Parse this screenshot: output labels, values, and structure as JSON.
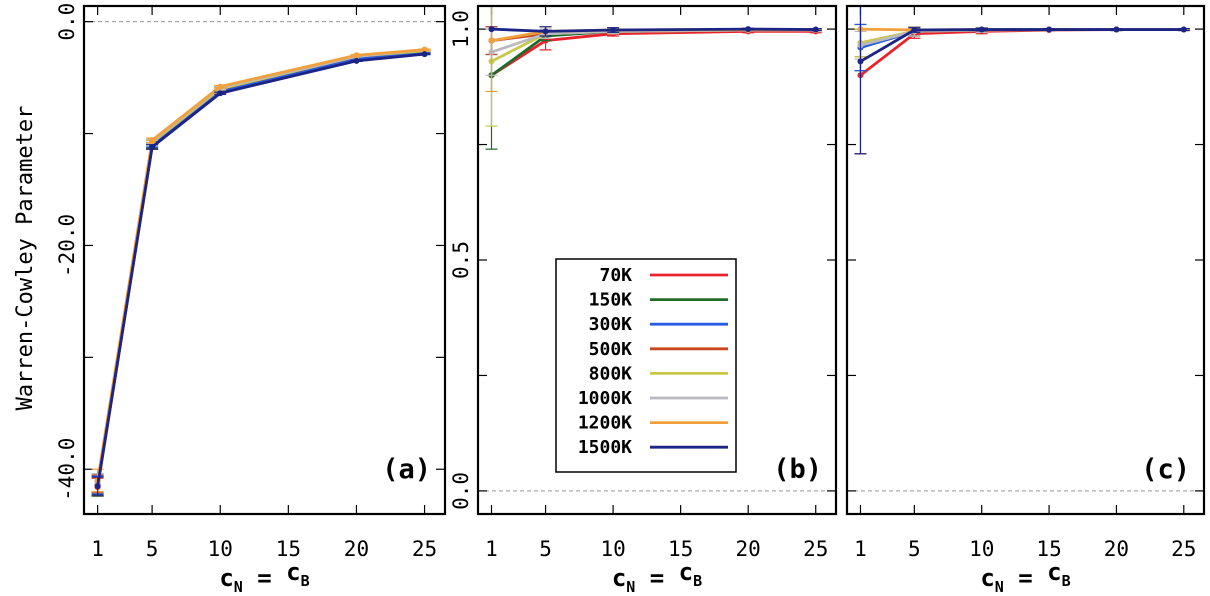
{
  "ylabel": "Warren-Cowley Parameter",
  "legend": {
    "entries": [
      "70K",
      "150K",
      "300K",
      "500K",
      "800K",
      "1000K",
      "1200K",
      "1500K"
    ]
  },
  "colors": {
    "70K": "#e8232b",
    "150K": "#1e6b2a",
    "300K": "#2a5be3",
    "500K": "#c9461f",
    "800K": "#c9c84a",
    "1000K": "#b9b9c0",
    "1200K": "#f2a03c",
    "1500K": "#1a2585"
  },
  "chart_data": [
    {
      "type": "line",
      "panel_label": "(a)",
      "xlabel": "c",
      "xlabel_sub1": "N",
      "xlabel_eq": "=",
      "xlabel_b": "c",
      "xlabel_sub2": "B",
      "x": [
        1,
        5,
        10,
        20,
        25
      ],
      "xticks": [
        "1",
        "5",
        "10",
        "15",
        "20",
        "25"
      ],
      "xtick_values": [
        1,
        5,
        10,
        15,
        20,
        25
      ],
      "xlim": [
        0,
        26.5
      ],
      "ylim": [
        -44,
        1.4
      ],
      "yticks": [
        "0.0",
        "-20.0",
        "-40.0"
      ],
      "ytick_values": [
        0,
        -20,
        -40
      ],
      "yminor": [
        -10,
        -30
      ],
      "zero_line": 0,
      "series": [
        {
          "name": "70K",
          "values": [
            -41.6,
            -11.2,
            -6.3,
            -3.4,
            -2.8
          ],
          "err": [
            0.8,
            0.2,
            0.1,
            0.05,
            0.05
          ]
        },
        {
          "name": "150K",
          "values": [
            -41.5,
            -11.1,
            -6.2,
            -3.3,
            -2.8
          ],
          "err": [
            0.9,
            0.2,
            0.1,
            0.05,
            0.05
          ]
        },
        {
          "name": "300K",
          "values": [
            -41.4,
            -11.0,
            -6.2,
            -3.3,
            -2.7
          ],
          "err": [
            0.8,
            0.2,
            0.1,
            0.05,
            0.05
          ]
        },
        {
          "name": "500K",
          "values": [
            -41.3,
            -10.8,
            -6.0,
            -3.1,
            -2.6
          ],
          "err": [
            0.8,
            0.2,
            0.1,
            0.05,
            0.05
          ]
        },
        {
          "name": "800K",
          "values": [
            -41.2,
            -10.8,
            -6.0,
            -3.1,
            -2.6
          ],
          "err": [
            0.8,
            0.2,
            0.1,
            0.05,
            0.05
          ]
        },
        {
          "name": "1000K",
          "values": [
            -41.2,
            -10.7,
            -5.9,
            -3.1,
            -2.5
          ],
          "err": [
            0.8,
            0.2,
            0.1,
            0.05,
            0.05
          ]
        },
        {
          "name": "1200K",
          "values": [
            -41.0,
            -10.6,
            -5.8,
            -3.0,
            -2.5
          ],
          "err": [
            1.0,
            0.2,
            0.1,
            0.05,
            0.05
          ]
        },
        {
          "name": "1500K",
          "values": [
            -41.5,
            -11.2,
            -6.4,
            -3.5,
            -2.9
          ],
          "err": [
            0.8,
            0.2,
            0.1,
            0.05,
            0.05
          ]
        }
      ]
    },
    {
      "type": "line",
      "panel_label": "(b)",
      "xlabel": "c",
      "xlabel_sub1": "N",
      "xlabel_eq": "=",
      "xlabel_b": "c",
      "xlabel_sub2": "B",
      "x": [
        1,
        5,
        10,
        20,
        25
      ],
      "xticks": [
        "1",
        "5",
        "10",
        "15",
        "20",
        "25"
      ],
      "xtick_values": [
        1,
        5,
        10,
        15,
        20,
        25
      ],
      "xlim": [
        0,
        26.5
      ],
      "ylim": [
        -0.05,
        1.05
      ],
      "yticks": [
        "1.0",
        "0.5",
        "0.0"
      ],
      "ytick_values": [
        1.0,
        0.5,
        0.0
      ],
      "yminor": [
        0.75,
        0.25
      ],
      "zero_line": 0,
      "legend_position": "center",
      "series": [
        {
          "name": "70K",
          "values": [
            0.9,
            0.975,
            0.99,
            0.995,
            0.995
          ],
          "err": [
            0.0,
            0.02,
            0.005,
            0.003,
            0.003
          ]
        },
        {
          "name": "150K",
          "values": [
            0.9,
            0.985,
            0.995,
            0.998,
            0.998
          ],
          "err": [
            0.16,
            0.01,
            0.005,
            0.002,
            0.002
          ]
        },
        {
          "name": "300K",
          "values": [
            0.975,
            0.99,
            0.995,
            0.998,
            0.998
          ],
          "err": [
            0.03,
            0.01,
            0.005,
            0.002,
            0.002
          ]
        },
        {
          "name": "500K",
          "values": [
            0.975,
            0.99,
            0.995,
            0.998,
            0.998
          ],
          "err": [
            0.03,
            0.01,
            0.005,
            0.002,
            0.002
          ]
        },
        {
          "name": "800K",
          "values": [
            0.93,
            0.99,
            0.995,
            0.998,
            0.998
          ],
          "err": [
            0.14,
            0.01,
            0.005,
            0.002,
            0.002
          ]
        },
        {
          "name": "1000K",
          "values": [
            0.95,
            0.99,
            0.995,
            0.998,
            0.998
          ],
          "err": [
            0.05,
            0.01,
            0.005,
            0.002,
            0.002
          ]
        },
        {
          "name": "1200K",
          "values": [
            0.975,
            0.995,
            0.998,
            0.999,
            0.999
          ],
          "err": [
            0.11,
            0.01,
            0.005,
            0.002,
            0.002
          ]
        },
        {
          "name": "1500K",
          "values": [
            1.0,
            0.995,
            0.998,
            1.0,
            0.999
          ],
          "err": [
            0.0,
            0.01,
            0.005,
            0.002,
            0.002
          ]
        }
      ]
    },
    {
      "type": "line",
      "panel_label": "(c)",
      "xlabel": "c",
      "xlabel_sub1": "N",
      "xlabel_eq": "=",
      "xlabel_b": "c",
      "xlabel_sub2": "B",
      "x": [
        1,
        5,
        10,
        15,
        20,
        25
      ],
      "xticks": [
        "1",
        "5",
        "10",
        "15",
        "20",
        "25"
      ],
      "xtick_values": [
        1,
        5,
        10,
        15,
        20,
        25
      ],
      "xlim": [
        0,
        26.5
      ],
      "ylim": [
        -0.05,
        1.05
      ],
      "yticks": [],
      "ytick_values": [
        1.0,
        0.5,
        0.0
      ],
      "yminor": [
        0.75,
        0.25
      ],
      "zero_line": 0,
      "series": [
        {
          "name": "70K",
          "values": [
            0.9,
            0.99,
            0.995,
            0.998,
            0.999,
            0.999
          ],
          "err": [
            0.17,
            0.01,
            0.005,
            0.002,
            0.002,
            0.002
          ]
        },
        {
          "name": "150K",
          "values": [
            0.96,
            0.995,
            0.998,
            0.999,
            0.999,
            0.999
          ],
          "err": [
            0.05,
            0.01,
            0.005,
            0.002,
            0.002,
            0.002
          ]
        },
        {
          "name": "300K",
          "values": [
            0.96,
            0.995,
            0.998,
            0.999,
            0.999,
            0.999
          ],
          "err": [
            0.05,
            0.01,
            0.005,
            0.002,
            0.002,
            0.002
          ]
        },
        {
          "name": "500K",
          "values": [
            0.97,
            0.995,
            0.998,
            0.999,
            0.999,
            0.999
          ],
          "err": [
            0.03,
            0.01,
            0.005,
            0.002,
            0.002,
            0.002
          ]
        },
        {
          "name": "800K",
          "values": [
            0.97,
            0.995,
            0.998,
            0.999,
            0.999,
            0.999
          ],
          "err": [
            0.03,
            0.01,
            0.005,
            0.002,
            0.002,
            0.002
          ]
        },
        {
          "name": "1000K",
          "values": [
            0.965,
            0.995,
            0.998,
            0.999,
            0.999,
            0.999
          ],
          "err": [
            0.03,
            0.01,
            0.005,
            0.002,
            0.002,
            0.002
          ]
        },
        {
          "name": "1200K",
          "values": [
            1.0,
            0.998,
            0.999,
            0.999,
            0.999,
            0.999
          ],
          "err": [
            0.0,
            0.005,
            0.003,
            0.002,
            0.002,
            0.002
          ]
        },
        {
          "name": "1500K",
          "values": [
            0.93,
            0.998,
            0.999,
            0.999,
            0.999,
            0.999
          ],
          "err": [
            0.2,
            0.005,
            0.003,
            0.002,
            0.002,
            0.002
          ]
        }
      ]
    }
  ]
}
